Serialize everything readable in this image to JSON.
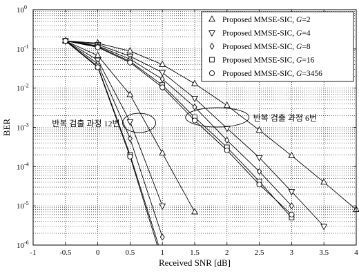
{
  "chart_data": {
    "type": "line",
    "xlabel": "Received SNR [dB]",
    "ylabel": "BER",
    "xlim": [
      -1,
      4
    ],
    "ylim": [
      1e-06,
      1
    ],
    "yscale": "log",
    "grid": "major and minor, dotted",
    "legend_position": "top-right",
    "x_ticks": [
      "-1",
      "-0.5",
      "0",
      "0.5",
      "1",
      "1.5",
      "2",
      "2.5",
      "3",
      "3.5",
      "4"
    ],
    "y_ticks": [
      {
        "base": "10",
        "exp": "0"
      },
      {
        "base": "10",
        "exp": "-1"
      },
      {
        "base": "10",
        "exp": "-2"
      },
      {
        "base": "10",
        "exp": "-3"
      },
      {
        "base": "10",
        "exp": "-4"
      },
      {
        "base": "10",
        "exp": "-5"
      },
      {
        "base": "10",
        "exp": "-6"
      }
    ],
    "legend": [
      {
        "prefix": "Proposed MMSE-SIC, ",
        "var": "G",
        "suffix": "=2",
        "marker": "triangle-up"
      },
      {
        "prefix": "Proposed MMSE-SIC, ",
        "var": "G",
        "suffix": "=4",
        "marker": "triangle-down"
      },
      {
        "prefix": "Proposed MMSE-SIC, ",
        "var": "G",
        "suffix": "=8",
        "marker": "diamond"
      },
      {
        "prefix": "Proposed MMSE-SIC, ",
        "var": "G",
        "suffix": "=16",
        "marker": "square"
      },
      {
        "prefix": "Proposed MMSE-SIC, ",
        "var": "G",
        "suffix": "=3456",
        "marker": "circle"
      }
    ],
    "series": [
      {
        "marker": "triangle-up",
        "group": "12 iterations",
        "x": [
          -0.5,
          0,
          0.5,
          1,
          1.5
        ],
        "y": [
          0.16,
          0.068,
          0.0068,
          0.00022,
          7e-06
        ]
      },
      {
        "marker": "triangle-down",
        "group": "12 iterations",
        "x": [
          -0.5,
          0,
          0.5,
          1
        ],
        "y": [
          0.16,
          0.052,
          0.0014,
          1e-05
        ]
      },
      {
        "marker": "diamond",
        "group": "12 iterations",
        "x": [
          -0.5,
          0,
          0.5,
          1
        ],
        "y": [
          0.16,
          0.042,
          0.00052,
          1.6e-06
        ]
      },
      {
        "marker": "square",
        "group": "12 iterations",
        "x": [
          -0.5,
          0,
          0.5,
          0.94
        ],
        "y": [
          0.16,
          0.036,
          0.0002,
          1e-06
        ]
      },
      {
        "marker": "circle",
        "group": "12 iterations",
        "x": [
          -0.5,
          0,
          0.5,
          0.92
        ],
        "y": [
          0.16,
          0.034,
          0.00018,
          1e-06
        ]
      },
      {
        "marker": "triangle-up",
        "group": "6 iterations",
        "x": [
          -0.5,
          0,
          0.5,
          1,
          1.5,
          2,
          2.5,
          3,
          3.5,
          4
        ],
        "y": [
          0.16,
          0.14,
          0.088,
          0.04,
          0.013,
          0.0036,
          0.00085,
          0.00019,
          4e-05,
          8e-06
        ]
      },
      {
        "marker": "triangle-down",
        "group": "6 iterations",
        "x": [
          -0.5,
          0,
          0.5,
          1,
          1.5,
          2,
          2.5,
          3,
          3.5
        ],
        "y": [
          0.16,
          0.13,
          0.065,
          0.025,
          0.0055,
          0.00095,
          0.00017,
          2.3e-05,
          3e-06
        ]
      },
      {
        "marker": "diamond",
        "group": "6 iterations",
        "x": [
          -0.5,
          0,
          0.5,
          1,
          1.5,
          2,
          2.5,
          3
        ],
        "y": [
          0.16,
          0.12,
          0.055,
          0.017,
          0.0033,
          0.00047,
          7.5e-05,
          1e-05
        ]
      },
      {
        "marker": "square",
        "group": "6 iterations",
        "x": [
          -0.5,
          0,
          0.5,
          1,
          1.5,
          2,
          2.5,
          3
        ],
        "y": [
          0.16,
          0.115,
          0.048,
          0.012,
          0.0018,
          0.00031,
          4.2e-05,
          5e-06
        ]
      },
      {
        "marker": "circle",
        "group": "6 iterations",
        "x": [
          -0.5,
          0,
          0.5,
          1,
          1.5,
          2,
          2.5,
          3
        ],
        "y": [
          0.16,
          0.11,
          0.045,
          0.0105,
          0.0015,
          0.00026,
          3.5e-05,
          6e-06
        ]
      }
    ],
    "annotations": [
      {
        "text": "반복 검출 과정 12번",
        "ellipse_center": [
          0.64,
          0.0013
        ]
      },
      {
        "text": "반복 검출 과정 6번",
        "ellipse_center": [
          1.85,
          0.0018
        ]
      }
    ]
  }
}
